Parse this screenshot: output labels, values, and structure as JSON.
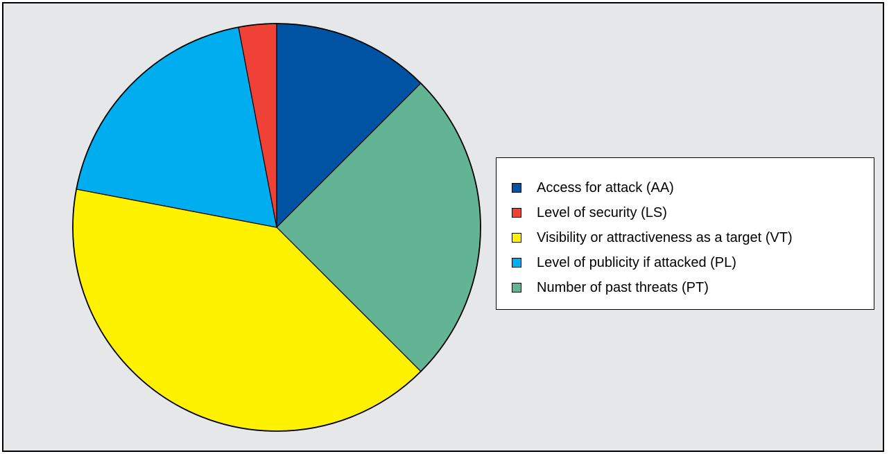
{
  "chart_data": {
    "type": "pie",
    "title": "",
    "legend_placement": "right",
    "start_angle_deg": 0,
    "direction": "clockwise",
    "slices": [
      {
        "label": "Access for attack (AA)",
        "value": 12.5,
        "color": "#0052a3"
      },
      {
        "label": "Number of past threats (PT)",
        "value": 25.0,
        "color": "#63b395"
      },
      {
        "label": "Visibility or attractiveness as a target (VT)",
        "value": 40.5,
        "color": "#fff200"
      },
      {
        "label": "Level of publicity if attacked (PL)",
        "value": 19.0,
        "color": "#00adef"
      },
      {
        "label": "Level of security (LS)",
        "value": 3.0,
        "color": "#ef4136"
      }
    ],
    "legend": [
      {
        "label": "Access for attack (AA)",
        "color": "#0052a3"
      },
      {
        "label": "Level of security (LS)",
        "color": "#ef4136"
      },
      {
        "label": "Visibility or attractiveness as a target (VT)",
        "color": "#fff200"
      },
      {
        "label": "Level of publicity if attacked (PL)",
        "color": "#00adef"
      },
      {
        "label": "Number of past threats (PT)",
        "color": "#63b395"
      }
    ]
  },
  "colors": {
    "background": "#e6e7e8",
    "legend_background": "#ffffff",
    "outline": "#000000"
  }
}
